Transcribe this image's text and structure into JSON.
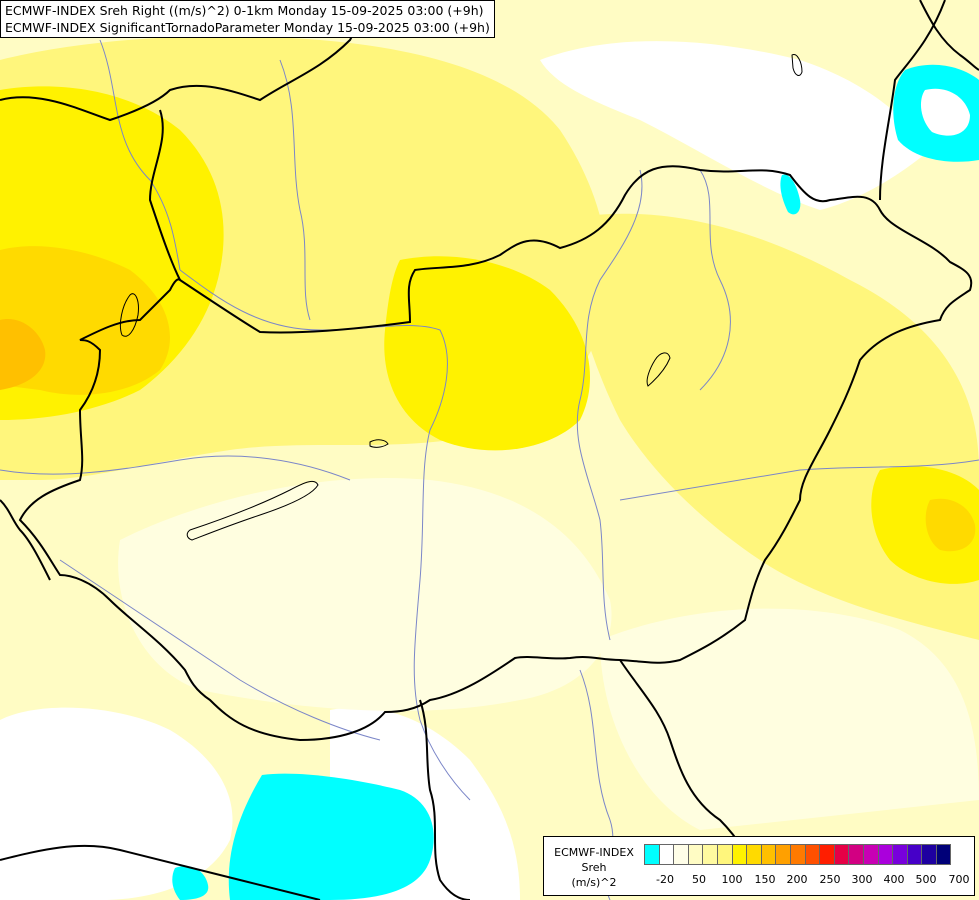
{
  "titles": {
    "line1": "ECMWF-INDEX Sreh Right ((m/s)^2) 0-1km Monday 15-09-2025 03:00 (+9h)",
    "line2": "ECMWF-INDEX SignificantTornadoParameter Monday 15-09-2025 03:00 (+9h)"
  },
  "legend": {
    "title_lines": [
      "ECMWF-INDEX",
      "Sreh",
      "(m/s)^2"
    ],
    "colors": [
      "#00ffff",
      "#ffffff",
      "#fffee8",
      "#fffcc4",
      "#fffaa0",
      "#fff67c",
      "#fff200",
      "#ffda00",
      "#ffc000",
      "#ffa000",
      "#ff7a00",
      "#ff5000",
      "#ff1e00",
      "#e60046",
      "#d20082",
      "#c800b4",
      "#aa00dc",
      "#7800dc",
      "#4600c8",
      "#1e00a0",
      "#000078"
    ],
    "tick_labels": [
      "-20",
      "50",
      "100",
      "150",
      "200",
      "250",
      "300",
      "400",
      "500",
      "700"
    ]
  },
  "map_colors": {
    "background": "#fffcc4",
    "light": "#fffee0",
    "pale": "#ffffff",
    "yellow": "#fff67c",
    "bright": "#fff200",
    "gold": "#ffda00",
    "orange": "#ffc000",
    "cyan": "#00ffff",
    "border": "#000000",
    "river": "#7b86c8"
  }
}
